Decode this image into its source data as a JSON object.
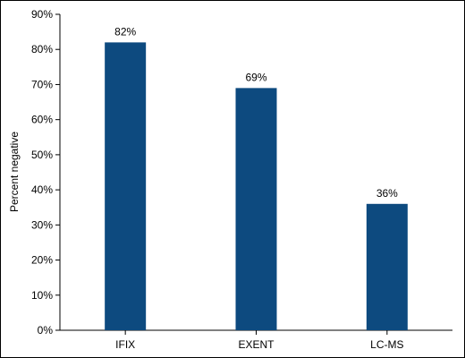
{
  "chart_data": {
    "type": "bar",
    "categories": [
      "IFIX",
      "EXENT",
      "LC-MS"
    ],
    "values": [
      82,
      69,
      36
    ],
    "value_labels": [
      "82%",
      "69%",
      "36%"
    ],
    "title": "",
    "xlabel": "",
    "ylabel": "Percent negative",
    "ylim": [
      0,
      90
    ],
    "yticks": [
      0,
      10,
      20,
      30,
      40,
      50,
      60,
      70,
      80,
      90
    ],
    "ytick_labels": [
      "0%",
      "10%",
      "20%",
      "30%",
      "40%",
      "50%",
      "60%",
      "70%",
      "80%",
      "90%"
    ],
    "grid": false,
    "legend": "none",
    "bar_color": "#0d4a7f"
  }
}
